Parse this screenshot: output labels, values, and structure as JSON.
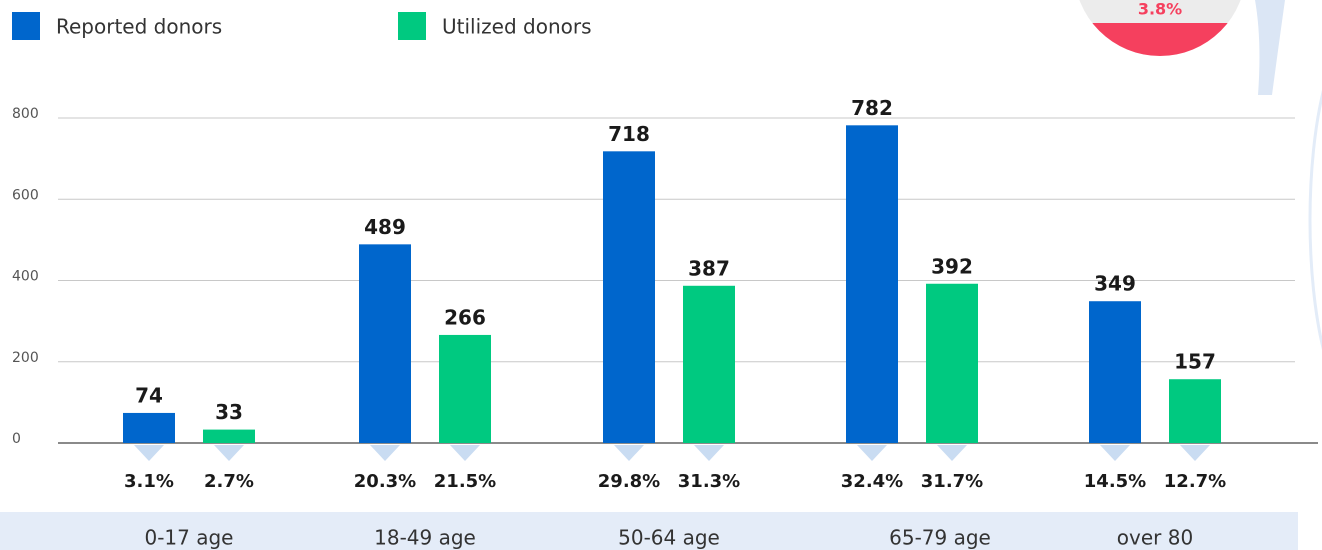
{
  "chart_data": {
    "type": "bar",
    "categories": [
      "0-17 age",
      "18-49 age",
      "50-64 age",
      "65-79 age",
      "over 80"
    ],
    "series": [
      {
        "name": "Reported donors",
        "color": "#0066cc",
        "values": [
          74,
          489,
          718,
          782,
          349
        ],
        "shares": [
          "3.1%",
          "20.3%",
          "29.8%",
          "32.4%",
          "14.5%"
        ]
      },
      {
        "name": "Utilized donors",
        "color": "#00c980",
        "values": [
          33,
          266,
          387,
          392,
          157
        ],
        "shares": [
          "2.7%",
          "21.5%",
          "31.3%",
          "31.7%",
          "12.7%"
        ]
      }
    ],
    "ylim": [
      0,
      800
    ],
    "yticks": [
      0,
      200,
      400,
      600,
      800
    ],
    "grid": true,
    "annotation": "3.8%"
  }
}
